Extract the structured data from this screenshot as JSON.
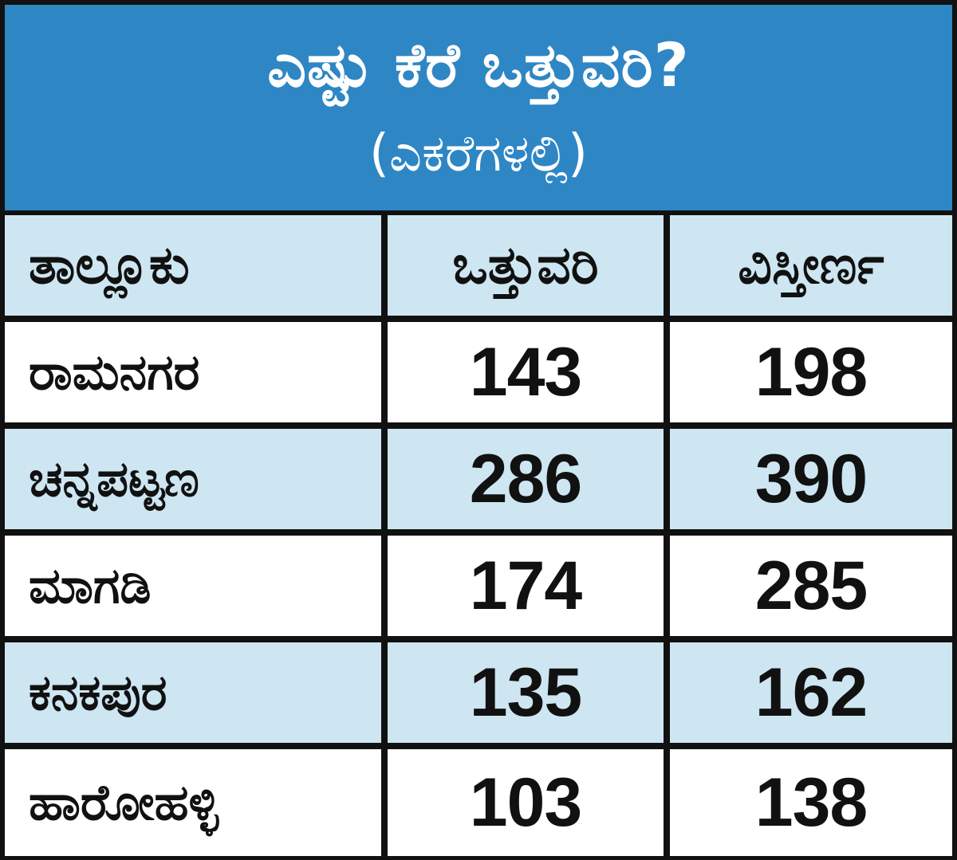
{
  "title": "ಎಷ್ಟು ಕೆರೆ ಒತ್ತುವರಿ?",
  "subtitle": "(ಎಕರೆಗಳಲ್ಲಿ)",
  "colors": {
    "header_blue": "#2f86c4",
    "row_light_blue": "#cde6f1",
    "row_white": "#ffffff",
    "border": "#111111"
  },
  "columns": [
    "ತಾಲ್ಲೂಕು",
    "ಒತ್ತುವರಿ",
    "ವಿಸ್ತೀರ್ಣ"
  ],
  "rows": [
    {
      "taluk": "ರಾಮನಗರ",
      "encroached": "143",
      "area": "198"
    },
    {
      "taluk": "ಚನ್ನಪಟ್ಟಣ",
      "encroached": "286",
      "area": "390"
    },
    {
      "taluk": "ಮಾಗಡಿ",
      "encroached": "174",
      "area": "285"
    },
    {
      "taluk": "ಕನಕಪುರ",
      "encroached": "135",
      "area": "162"
    },
    {
      "taluk": "ಹಾರೋಹಳ್ಳಿ",
      "encroached": "103",
      "area": "138"
    }
  ],
  "chart_data": {
    "type": "table",
    "title": "ಎಷ್ಟು ಕೆರೆ ಒತ್ತುವರಿ?",
    "subtitle": "(ಎಕರೆಗಳಲ್ಲಿ)",
    "columns": [
      "ತಾಲ್ಲೂಕು",
      "ಒತ್ತುವರಿ",
      "ವಿಸ್ತೀರ್ಣ"
    ],
    "categories": [
      "ರಾಮನಗರ",
      "ಚನ್ನಪಟ್ಟಣ",
      "ಮಾಗಡಿ",
      "ಕನಕಪುರ",
      "ಹಾರೋಹಳ್ಳಿ"
    ],
    "series": [
      {
        "name": "ಒತ್ತುವರಿ",
        "values": [
          143,
          286,
          174,
          135,
          103
        ]
      },
      {
        "name": "ವಿಸ್ತೀರ್ಣ",
        "values": [
          198,
          390,
          285,
          162,
          138
        ]
      }
    ]
  }
}
